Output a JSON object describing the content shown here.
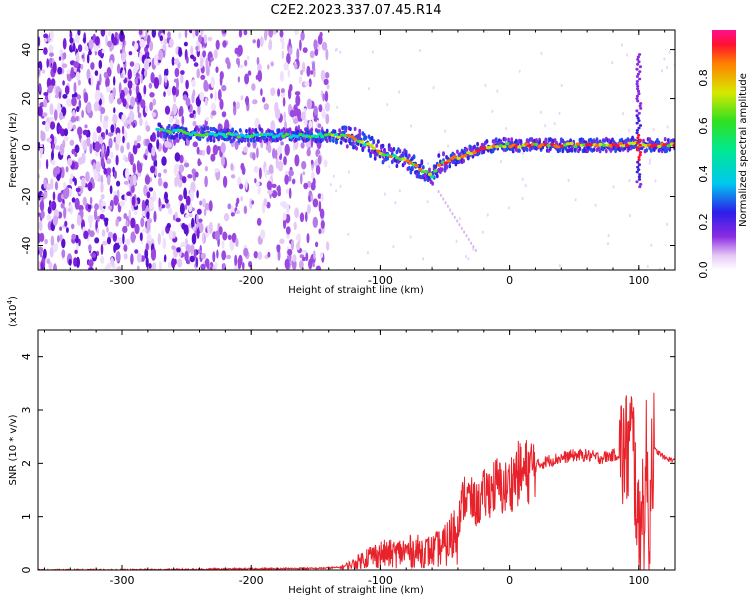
{
  "title": "C2E2.2023.337.07.45.R14",
  "chart_data": [
    {
      "type": "heatmap",
      "xlabel": "Height of straight line (km)",
      "ylabel": "Frequency (Hz)",
      "xlim": [
        -365,
        128
      ],
      "ylim": [
        -50,
        48
      ],
      "xticks": [
        -300,
        -200,
        -100,
        0,
        100
      ],
      "yticks": [
        -40,
        -20,
        0,
        20,
        40
      ],
      "xtick_labels": [
        "-300",
        "-200",
        "-100",
        "0",
        "100"
      ],
      "ytick_labels": [
        "-40",
        "-20",
        "0",
        "20",
        "40"
      ],
      "colorbar": {
        "label": "Normalized spectral amplitude",
        "range": [
          0,
          1
        ],
        "ticks": [
          0.0,
          0.2,
          0.4,
          0.6,
          0.8
        ],
        "tick_labels": [
          "0.0",
          "0.2",
          "0.4",
          "0.6",
          "0.8"
        ]
      },
      "noise_region_x": [
        -365,
        -140
      ],
      "ridge": {
        "x": [
          -272,
          -250,
          -220,
          -200,
          -180,
          -160,
          -140,
          -120,
          -100,
          -80,
          -60,
          -55,
          -45,
          -40,
          -30,
          -20,
          -10,
          0,
          20,
          40,
          60,
          80,
          90,
          95,
          100,
          105,
          110,
          128
        ],
        "y": [
          7,
          6,
          5,
          5,
          5,
          5,
          5,
          4,
          -2,
          -5,
          -12,
          -7,
          -5,
          -4,
          -2,
          0,
          1,
          1,
          1,
          1,
          1,
          1,
          1,
          2,
          1,
          1,
          1,
          1
        ]
      },
      "spike": {
        "x": 100,
        "ymin": -16,
        "ymax": 38
      }
    },
    {
      "type": "line",
      "xlabel": "Height of straight line (km)",
      "ylabel": "SNR (10 * v/v)",
      "scale_label": "(x10",
      "scale_exp": "4",
      "scale_close": ")",
      "xlim": [
        -365,
        128
      ],
      "ylim": [
        0,
        4.5
      ],
      "xticks": [
        -300,
        -200,
        -100,
        0,
        100
      ],
      "yticks": [
        0,
        1,
        2,
        3,
        4
      ],
      "xtick_labels": [
        "-300",
        "-200",
        "-100",
        "0",
        "100"
      ],
      "ytick_labels": [
        "0",
        "1",
        "2",
        "3",
        "4"
      ],
      "color": "#e8222a",
      "series": [
        {
          "x": [
            -365,
            -300,
            -200,
            -150,
            -130,
            -120,
            -110,
            -100,
            -90,
            -80,
            -70,
            -60,
            -50,
            -45,
            -40,
            -35,
            -30,
            -25,
            -20,
            -15,
            -10,
            -5,
            0,
            5,
            10,
            20,
            30,
            40,
            50,
            60,
            70,
            80,
            90,
            95,
            98,
            100,
            102,
            104,
            106,
            108,
            110,
            115,
            120,
            128
          ],
          "y": [
            0.0,
            0.0,
            0.02,
            0.03,
            0.05,
            0.12,
            0.25,
            0.3,
            0.3,
            0.35,
            0.35,
            0.35,
            0.45,
            0.6,
            0.9,
            1.4,
            1.3,
            1.2,
            1.4,
            1.5,
            1.6,
            1.5,
            1.6,
            1.8,
            1.8,
            1.95,
            2.05,
            2.1,
            2.15,
            2.15,
            2.1,
            2.15,
            2.2,
            2.5,
            1.5,
            0.4,
            1.6,
            0.8,
            2.2,
            0.6,
            2.3,
            2.2,
            2.1,
            2.05
          ]
        }
      ]
    }
  ]
}
